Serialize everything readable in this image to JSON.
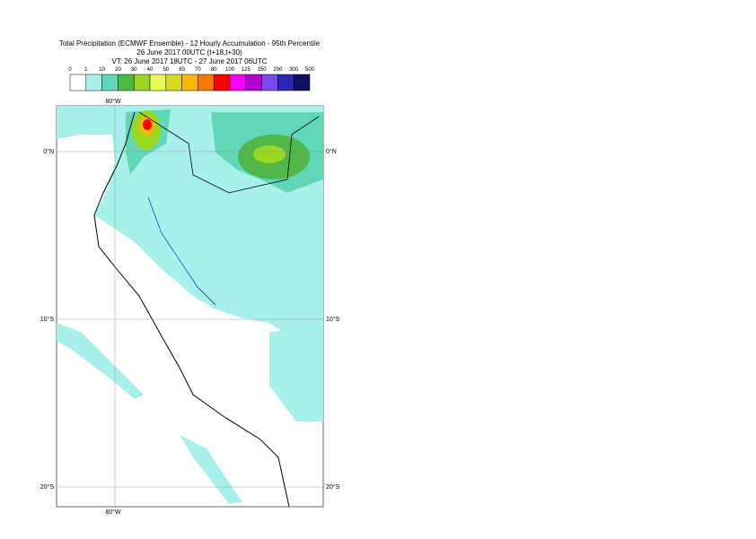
{
  "header": {
    "title": [
      "Total Precipitation (ECMWF Ensemble) - 12 Hourly Accumulation - 95th Percentile",
      "26 June 2017 00UTC (t+18,t+30)",
      "VT: 26 June 2017 18UTC - 27 June 2017 06UTC"
    ]
  },
  "legend": {
    "labels": [
      "0",
      "1",
      "10",
      "20",
      "30",
      "40",
      "50",
      "60",
      "70",
      "80",
      "100",
      "125",
      "150",
      "200",
      "300",
      "500"
    ],
    "colors": [
      "#ffffff",
      "#a8f0ec",
      "#60d8b8",
      "#50b848",
      "#98d820",
      "#e8f858",
      "#d8d820",
      "#f8b800",
      "#f87800",
      "#f80000",
      "#f800f8",
      "#b000d0",
      "#7848f0",
      "#2828b0",
      "#101060"
    ]
  },
  "grid": {
    "lon_labels": [
      "80°W"
    ],
    "lat_labels": [
      "0°N",
      "10°S",
      "20°S"
    ]
  }
}
